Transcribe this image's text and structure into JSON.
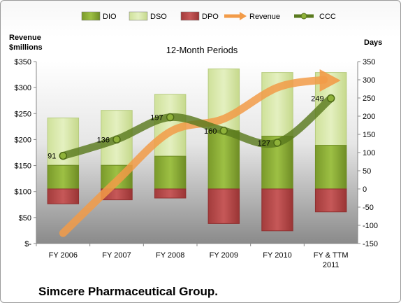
{
  "chart_data": {
    "type": "bar",
    "title": "12-Month Periods",
    "company": "Simcere Pharmaceutical Group.",
    "left_axis_label": [
      "Revenue",
      "$millions"
    ],
    "right_axis_label": "Days",
    "categories": [
      "FY 2006",
      "FY 2007",
      "FY 2008",
      "FY 2009",
      "FY 2010",
      "FY & TTM 2011"
    ],
    "left_ticks": [
      "$-",
      "$50",
      "$100",
      "$150",
      "$200",
      "$250",
      "$300",
      "$350"
    ],
    "right_ticks": [
      "-150",
      "-100",
      "-50",
      "0",
      "50",
      "100",
      "150",
      "200",
      "250",
      "300",
      "350"
    ],
    "right_ylim": [
      -150,
      350
    ],
    "left_ylim": [
      0,
      350
    ],
    "series": [
      {
        "name": "DIO",
        "axis": "days",
        "values": [
          65,
          65,
          90,
          160,
          145,
          120
        ],
        "color": "#8fb23a"
      },
      {
        "name": "DSO",
        "axis": "days",
        "values": [
          130,
          151,
          170,
          170,
          175,
          200
        ],
        "color": "#d7e8a8"
      },
      {
        "name": "DPO",
        "axis": "days",
        "values": [
          -41,
          -30,
          -25,
          -95,
          -115,
          -63
        ],
        "color": "#b84a4a"
      },
      {
        "name": "Revenue",
        "axis": "dollars",
        "values": [
          20,
          120,
          215,
          240,
          300,
          315
        ],
        "color": "#f29b48"
      },
      {
        "name": "CCC",
        "axis": "days",
        "values": [
          91,
          136,
          197,
          160,
          127,
          249
        ],
        "color": "#5a7a1e"
      }
    ],
    "ccc_labels": [
      "91",
      "136",
      "197",
      "160",
      "127",
      "249"
    ],
    "legend": [
      "DIO",
      "DSO",
      "DPO",
      "Revenue",
      "CCC"
    ],
    "legend_position": "top"
  }
}
